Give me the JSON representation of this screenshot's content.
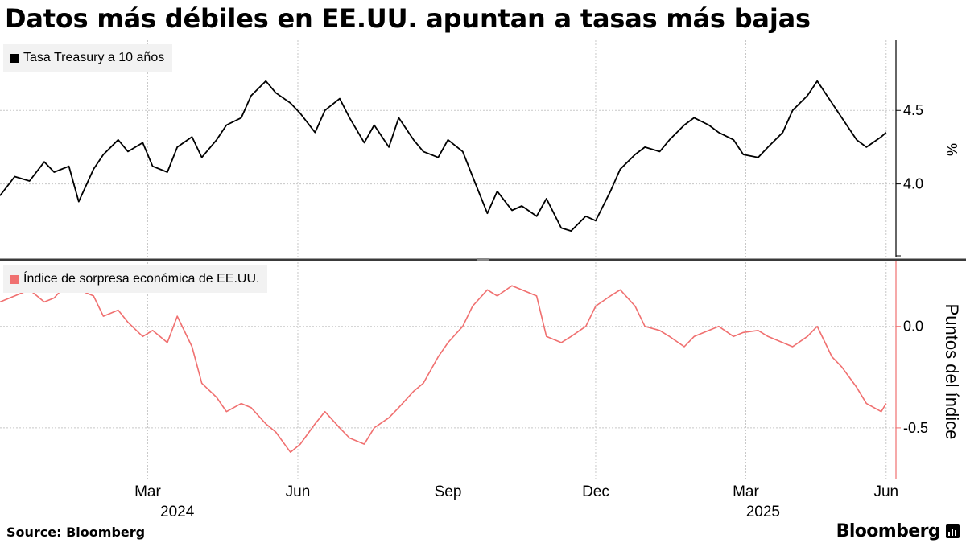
{
  "header": {
    "title": "Datos más débiles en EE.UU. apuntan a tasas más bajas"
  },
  "footer": {
    "source": "Source: Bloomberg",
    "brand": "Bloomberg",
    "brand_icon": "bloomberg-terminal-icon"
  },
  "colors": {
    "treasury": "#000000",
    "surprise": "#f07070",
    "grid": "#c8c8c8",
    "legend_bg": "#f2f2f2",
    "divider": "#3a3a3a"
  },
  "chart_data": [
    {
      "type": "line",
      "legend": "Tasa Treasury a 10 años",
      "ylabel": "%",
      "ylim": [
        3.5,
        4.95
      ],
      "yticks": [
        4.0,
        4.5
      ],
      "ytick_labels": [
        "4.0",
        "4.5"
      ],
      "x_months": [
        "Mar",
        "Jun",
        "Sep",
        "Dec",
        "Mar",
        "Jun"
      ],
      "x_years": [
        "2024",
        "2025"
      ],
      "xlim": [
        0,
        18.2
      ],
      "x": [
        0,
        0.3,
        0.6,
        0.9,
        1.1,
        1.4,
        1.6,
        1.9,
        2.1,
        2.4,
        2.6,
        2.9,
        3.1,
        3.4,
        3.6,
        3.9,
        4.1,
        4.4,
        4.6,
        4.9,
        5.1,
        5.4,
        5.6,
        5.9,
        6.1,
        6.4,
        6.6,
        6.9,
        7.1,
        7.4,
        7.6,
        7.9,
        8.1,
        8.4,
        8.6,
        8.9,
        9.1,
        9.4,
        9.6,
        9.9,
        10.1,
        10.4,
        10.6,
        10.9,
        11.1,
        11.4,
        11.6,
        11.9,
        12.1,
        12.4,
        12.6,
        12.9,
        13.1,
        13.4,
        13.6,
        13.9,
        14.1,
        14.4,
        14.6,
        14.9,
        15.1,
        15.4,
        15.6,
        15.9,
        16.1,
        16.4,
        16.6,
        16.9,
        17.1,
        17.4,
        17.6,
        17.9,
        18.0
      ],
      "values": [
        3.92,
        4.05,
        4.02,
        4.15,
        4.08,
        4.12,
        3.88,
        4.1,
        4.2,
        4.3,
        4.22,
        4.28,
        4.12,
        4.08,
        4.25,
        4.32,
        4.18,
        4.3,
        4.4,
        4.45,
        4.6,
        4.7,
        4.62,
        4.55,
        4.48,
        4.35,
        4.5,
        4.58,
        4.45,
        4.28,
        4.4,
        4.25,
        4.45,
        4.3,
        4.22,
        4.18,
        4.3,
        4.22,
        4.05,
        3.8,
        3.95,
        3.82,
        3.85,
        3.78,
        3.9,
        3.7,
        3.68,
        3.78,
        3.75,
        3.95,
        4.1,
        4.2,
        4.25,
        4.22,
        4.3,
        4.4,
        4.45,
        4.4,
        4.35,
        4.3,
        4.2,
        4.18,
        4.25,
        4.35,
        4.5,
        4.6,
        4.7,
        4.55,
        4.45,
        4.3,
        4.25,
        4.32,
        4.35
      ]
    },
    {
      "type": "line",
      "legend": "Índice de sorpresa económica de EE.UU.",
      "ylabel": "Puntos del índice",
      "ylim": [
        -0.75,
        0.3
      ],
      "yticks": [
        0.0,
        -0.5
      ],
      "ytick_labels": [
        "0.0",
        "-0.5"
      ],
      "xlim": [
        0,
        18.2
      ],
      "x": [
        0,
        0.3,
        0.6,
        0.9,
        1.1,
        1.4,
        1.6,
        1.9,
        2.1,
        2.4,
        2.6,
        2.9,
        3.1,
        3.4,
        3.6,
        3.9,
        4.1,
        4.4,
        4.6,
        4.9,
        5.1,
        5.4,
        5.6,
        5.9,
        6.1,
        6.4,
        6.6,
        6.9,
        7.1,
        7.4,
        7.6,
        7.9,
        8.1,
        8.4,
        8.6,
        8.9,
        9.1,
        9.4,
        9.6,
        9.9,
        10.1,
        10.4,
        10.6,
        10.9,
        11.1,
        11.4,
        11.6,
        11.9,
        12.1,
        12.4,
        12.6,
        12.9,
        13.1,
        13.4,
        13.6,
        13.9,
        14.1,
        14.4,
        14.6,
        14.9,
        15.1,
        15.4,
        15.6,
        15.9,
        16.1,
        16.4,
        16.6,
        16.9,
        17.1,
        17.4,
        17.6,
        17.9,
        18.0
      ],
      "values": [
        0.12,
        0.15,
        0.18,
        0.12,
        0.14,
        0.22,
        0.18,
        0.15,
        0.05,
        0.08,
        0.02,
        -0.05,
        -0.02,
        -0.08,
        0.05,
        -0.1,
        -0.28,
        -0.35,
        -0.42,
        -0.38,
        -0.4,
        -0.48,
        -0.52,
        -0.62,
        -0.58,
        -0.48,
        -0.42,
        -0.5,
        -0.55,
        -0.58,
        -0.5,
        -0.45,
        -0.4,
        -0.32,
        -0.28,
        -0.15,
        -0.08,
        0.0,
        0.1,
        0.18,
        0.15,
        0.2,
        0.18,
        0.15,
        -0.05,
        -0.08,
        -0.05,
        0.0,
        0.1,
        0.15,
        0.18,
        0.1,
        0.0,
        -0.02,
        -0.05,
        -0.1,
        -0.05,
        -0.02,
        0.0,
        -0.05,
        -0.03,
        -0.02,
        -0.05,
        -0.08,
        -0.1,
        -0.05,
        0.0,
        -0.15,
        -0.2,
        -0.3,
        -0.38,
        -0.42,
        -0.38
      ]
    }
  ]
}
